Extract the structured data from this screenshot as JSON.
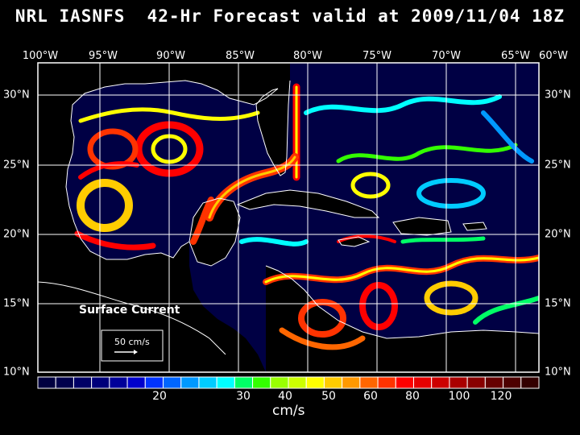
{
  "title": "NRL IASNFS  42-Hr Forecast valid at 2009/11/04 18Z",
  "lon_labels": [
    "100°W",
    "95°W",
    "90°W",
    "85°W",
    "80°W",
    "75°W",
    "70°W",
    "65°W",
    "60°W"
  ],
  "lat_labels": [
    "30°N",
    "25°N",
    "20°N",
    "15°N",
    "10°N"
  ],
  "legend": {
    "surface_label": "Surface Current",
    "scale_label": "50 cm/s"
  },
  "colorbar": {
    "units": "cm/s",
    "tick_labels": [
      "20",
      "30",
      "40",
      "50",
      "60",
      "80",
      "100",
      "120"
    ],
    "colors": [
      "#000040",
      "#00004c",
      "#000066",
      "#00007a",
      "#000099",
      "#0000cc",
      "#0033ff",
      "#0066ff",
      "#0099ff",
      "#00ccff",
      "#00ffff",
      "#00ff66",
      "#33ff00",
      "#99ff00",
      "#ccff00",
      "#ffff00",
      "#ffcc00",
      "#ff9900",
      "#ff6600",
      "#ff3300",
      "#ff0000",
      "#e60000",
      "#cc0000",
      "#aa0000",
      "#880000",
      "#660000",
      "#4d0000",
      "#330000"
    ]
  },
  "map": {
    "ocean_background": "#000044",
    "land_color": "#000000",
    "coast_color": "#ffffff",
    "grid_color": "#ffffff"
  }
}
